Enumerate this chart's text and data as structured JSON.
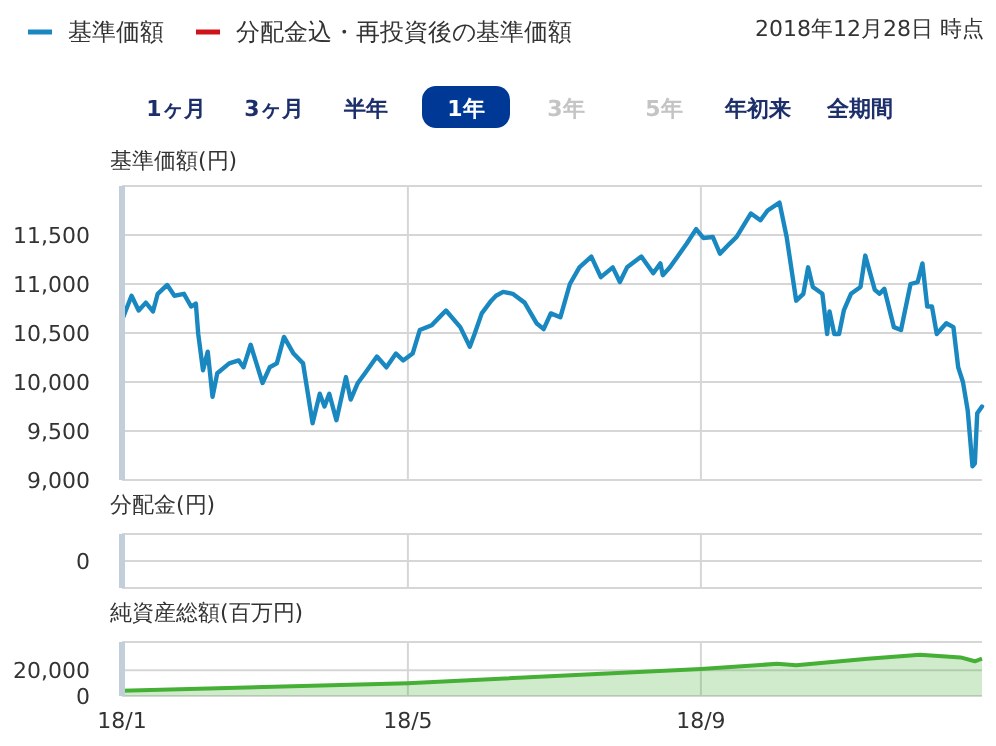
{
  "chart_data": [
    {
      "type": "line",
      "ylabel": "基準価額(円)",
      "subtitle": "2018年12月28日 時点",
      "annotations": [
        "1ヶ月",
        "3ヶ月",
        "半年",
        "1年",
        "3年",
        "5年",
        "年初来",
        "全期間"
      ],
      "legend": "top left",
      "grid": true,
      "tick_labels": "y",
      "xlim": [
        "2018-01-01",
        "2018-12-28"
      ],
      "xticks": [
        {
          "value": "2018-01-01",
          "label": null
        },
        {
          "value": "2018-05-01",
          "label": null
        },
        {
          "value": "2018-09-01",
          "label": null
        }
      ],
      "ylim": [
        9000,
        12000
      ],
      "yticks": [
        {
          "value": 9000,
          "label": "9,000"
        },
        {
          "value": 9500,
          "label": "9,500"
        },
        {
          "value": 10000,
          "label": "10,000"
        },
        {
          "value": 10500,
          "label": "10,500"
        },
        {
          "value": 11000,
          "label": "11,000"
        },
        {
          "value": 11500,
          "label": "11,500"
        }
      ],
      "series": [
        {
          "name": "基準価額",
          "color": "#1a88c0",
          "x": [
            "2018-01-01",
            "2018-01-05",
            "2018-01-08",
            "2018-01-11",
            "2018-01-14",
            "2018-01-16",
            "2018-01-20",
            "2018-01-23",
            "2018-01-27",
            "2018-01-30",
            "2018-02-01",
            "2018-02-02",
            "2018-02-04",
            "2018-02-06",
            "2018-02-08",
            "2018-02-10",
            "2018-02-15",
            "2018-02-19",
            "2018-02-21",
            "2018-02-24",
            "2018-03-01",
            "2018-03-04",
            "2018-03-07",
            "2018-03-10",
            "2018-03-14",
            "2018-03-18",
            "2018-03-22",
            "2018-03-25",
            "2018-03-27",
            "2018-03-29",
            "2018-04-01",
            "2018-04-05",
            "2018-04-07",
            "2018-04-10",
            "2018-04-13",
            "2018-04-18",
            "2018-04-22",
            "2018-04-26",
            "2018-04-29",
            "2018-05-03",
            "2018-05-06",
            "2018-05-11",
            "2018-05-15",
            "2018-05-17",
            "2018-05-23",
            "2018-05-27",
            "2018-05-29",
            "2018-06-01",
            "2018-06-05",
            "2018-06-07",
            "2018-06-10",
            "2018-06-14",
            "2018-06-19",
            "2018-06-24",
            "2018-06-27",
            "2018-06-30",
            "2018-07-04",
            "2018-07-08",
            "2018-07-12",
            "2018-07-17",
            "2018-07-21",
            "2018-07-26",
            "2018-07-29",
            "2018-08-01",
            "2018-08-07",
            "2018-08-12",
            "2018-08-15",
            "2018-08-16",
            "2018-08-19",
            "2018-08-26",
            "2018-08-30",
            "2018-09-02",
            "2018-09-06",
            "2018-09-09",
            "2018-09-13",
            "2018-09-16",
            "2018-09-22",
            "2018-09-26",
            "2018-09-29",
            "2018-10-04",
            "2018-10-07",
            "2018-10-11",
            "2018-10-14",
            "2018-10-16",
            "2018-10-18",
            "2018-10-22",
            "2018-10-24",
            "2018-10-25",
            "2018-10-27",
            "2018-10-29",
            "2018-10-31",
            "2018-11-03",
            "2018-11-07",
            "2018-11-09",
            "2018-11-13",
            "2018-11-15",
            "2018-11-17",
            "2018-11-21",
            "2018-11-24",
            "2018-11-28",
            "2018-12-01",
            "2018-12-03",
            "2018-12-05",
            "2018-12-07",
            "2018-12-09",
            "2018-12-13",
            "2018-12-16",
            "2018-12-18",
            "2018-12-20",
            "2018-12-22",
            "2018-12-24",
            "2018-12-25",
            "2018-12-26",
            "2018-12-28"
          ],
          "values": [
            10630,
            10880,
            10730,
            10810,
            10720,
            10900,
            10990,
            10880,
            10900,
            10770,
            10800,
            10490,
            10120,
            10310,
            9850,
            10090,
            10190,
            10220,
            10150,
            10380,
            9990,
            10150,
            10190,
            10460,
            10290,
            10190,
            9580,
            9880,
            9750,
            9880,
            9610,
            10050,
            9820,
            9990,
            10090,
            10260,
            10150,
            10290,
            10220,
            10290,
            10530,
            10580,
            10680,
            10730,
            10560,
            10360,
            10490,
            10700,
            10830,
            10880,
            10920,
            10900,
            10810,
            10600,
            10540,
            10700,
            10660,
            11000,
            11170,
            11280,
            11070,
            11170,
            11020,
            11170,
            11280,
            11110,
            11210,
            11090,
            11170,
            11410,
            11560,
            11470,
            11480,
            11310,
            11410,
            11480,
            11720,
            11650,
            11750,
            11830,
            11480,
            10830,
            10900,
            11170,
            10970,
            10900,
            10490,
            10720,
            10490,
            10490,
            10730,
            10900,
            10970,
            11290,
            10940,
            10900,
            10950,
            10560,
            10530,
            11000,
            11020,
            11210,
            10770,
            10770,
            10490,
            10600,
            10560,
            10150,
            10000,
            9710,
            9140,
            9170,
            9680,
            9750
          ]
        },
        {
          "name": "分配金込・再投資後の基準価額",
          "color": "#d0121b"
        }
      ]
    },
    {
      "type": "other",
      "ylabel": "分配金(円)",
      "annotations": [
        "0"
      ]
    },
    {
      "type": "area",
      "ylabel": "純資産総額(百万円)",
      "grid": true,
      "color": "#45b035",
      "xlim": [
        "2018-01-01",
        "2018-12-28"
      ],
      "xticks": [
        {
          "value": "2018-01-01",
          "label": "18/1"
        },
        {
          "value": "2018-05-01",
          "label": "18/5"
        },
        {
          "value": "2018-09-01",
          "label": "18/9"
        }
      ],
      "ylim": [
        0,
        42000
      ],
      "yticks": [
        0,
        {
          "value": 20000,
          "label": "20,000"
        }
      ],
      "x": [
        "2018-01-01",
        "2018-05-01",
        "2018-09-01",
        "2018-10-03",
        "2018-10-11",
        "2018-11-10",
        "2018-12-02",
        "2018-12-19",
        "2018-12-25",
        "2018-12-28"
      ],
      "values": [
        4000,
        10000,
        21000,
        25000,
        24000,
        29000,
        32000,
        30000,
        27000,
        29000
      ]
    }
  ]
}
